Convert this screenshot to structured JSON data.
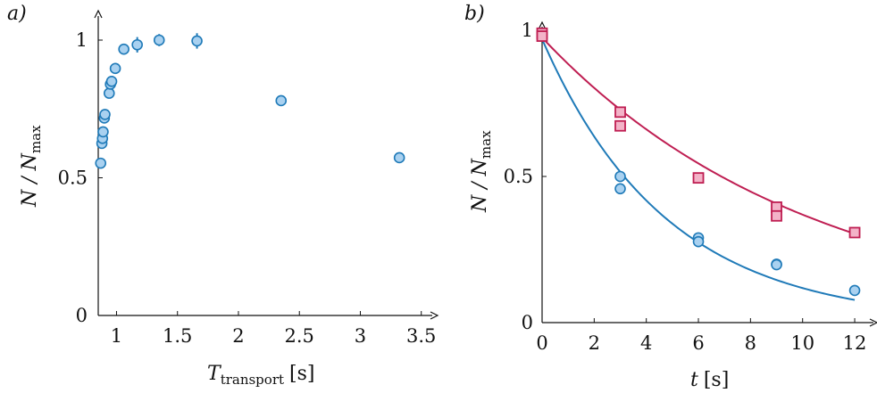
{
  "chart_data": [
    {
      "type": "scatter",
      "panel_label": "a)",
      "xlabel": {
        "main": "T",
        "sub": "transport",
        "unit": "[s]"
      },
      "ylabel": {
        "main": "N / N",
        "sub": "max"
      },
      "xlim": [
        0.85,
        3.55
      ],
      "ylim": [
        0,
        1.07
      ],
      "xticks": [
        "1",
        "1.5",
        "2",
        "2.5",
        "3",
        "3.5"
      ],
      "xtick_values": [
        1,
        1.5,
        2,
        2.5,
        3,
        3.5
      ],
      "yticks": [
        "0",
        "0.5",
        "1"
      ],
      "ytick_values": [
        0,
        0.5,
        1
      ],
      "grid": false,
      "marker_color": "#1f7ab8",
      "marker_fill": "#a9d1f0",
      "series": [
        {
          "x": [
            0.87,
            0.88,
            0.885,
            0.89,
            0.9,
            0.905,
            0.94,
            0.95,
            0.96,
            0.99,
            1.06,
            1.17,
            1.35,
            1.66,
            2.35,
            3.32
          ],
          "y": [
            0.553,
            0.625,
            0.643,
            0.667,
            0.717,
            0.73,
            0.807,
            0.84,
            0.85,
            0.897,
            0.967,
            0.983,
            1.0,
            0.997,
            0.78,
            0.573
          ],
          "yerr": [
            0.018,
            0.012,
            0.012,
            0.012,
            0.015,
            0.015,
            0.012,
            0.012,
            0.012,
            0.012,
            0.015,
            0.028,
            0.022,
            0.028,
            0.012,
            0.012
          ]
        }
      ]
    },
    {
      "type": "scatter",
      "panel_label": "b)",
      "xlabel": {
        "main": "t",
        "unit": "[s]"
      },
      "ylabel": {
        "main": "N / N",
        "sub": "max"
      },
      "xlim": [
        0,
        12.7
      ],
      "ylim": [
        0,
        1.06
      ],
      "xticks": [
        "0",
        "2",
        "4",
        "6",
        "8",
        "10",
        "12"
      ],
      "xtick_values": [
        0,
        2,
        4,
        6,
        8,
        10,
        12
      ],
      "yticks": [
        "0",
        "0.5",
        "1"
      ],
      "ytick_values": [
        0,
        0.5,
        1
      ],
      "grid": false,
      "series": [
        {
          "marker": "circle",
          "color": "#1f7ab8",
          "fill": "#a9d1f0",
          "x": [
            0,
            3,
            3,
            6,
            6,
            9,
            9,
            12
          ],
          "y": [
            0.99,
            0.5,
            0.458,
            0.29,
            0.277,
            0.2,
            0.198,
            0.11
          ],
          "fit": {
            "a": 0.97,
            "tau": 4.75
          }
        },
        {
          "marker": "square",
          "color": "#bf1e52",
          "fill": "#f3b3c8",
          "x": [
            0,
            0,
            3,
            3,
            6,
            9,
            9,
            12
          ],
          "y": [
            0.99,
            0.98,
            0.72,
            0.673,
            0.495,
            0.395,
            0.365,
            0.308
          ],
          "fit": {
            "a": 0.975,
            "tau": 10.3
          }
        }
      ]
    }
  ]
}
